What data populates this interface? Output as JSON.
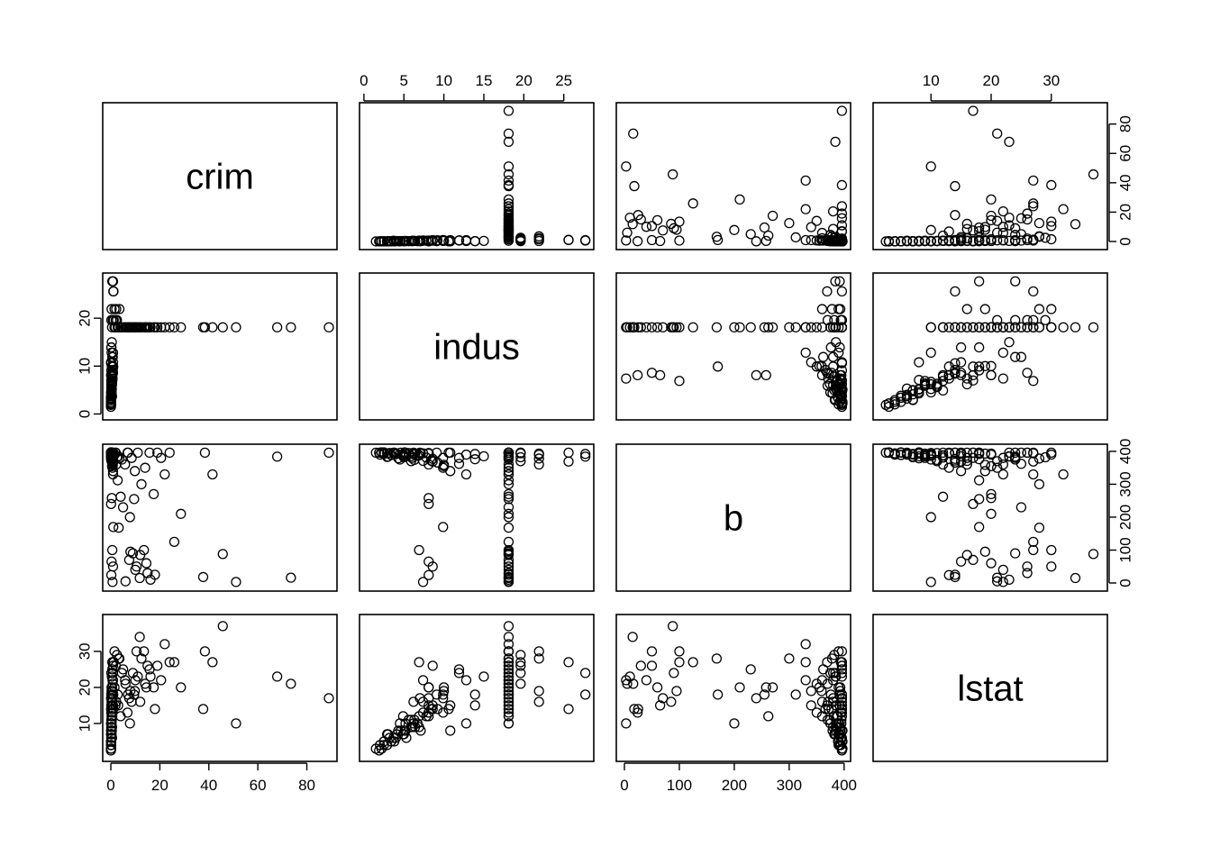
{
  "chart_data": {
    "type": "scatter",
    "kind": "scatterplot-matrix",
    "title": "",
    "variables": [
      "crim",
      "indus",
      "b",
      "lstat"
    ],
    "ranges": {
      "crim": [
        0,
        89
      ],
      "indus": [
        0.46,
        27.74
      ],
      "b": [
        0,
        397
      ],
      "lstat": [
        1.73,
        37.97
      ]
    },
    "axes": {
      "bottom": {
        "crim": [
          0,
          20,
          40,
          60,
          80
        ],
        "b": [
          0,
          100,
          200,
          300,
          400
        ]
      },
      "top": {
        "indus": [
          0,
          5,
          10,
          15,
          20,
          25
        ],
        "lstat": [
          10,
          20,
          30
        ]
      },
      "left": {
        "indus": [
          0,
          10,
          20
        ],
        "lstat": [
          10,
          20,
          30
        ]
      },
      "right": {
        "crim": [
          0,
          20,
          40,
          60,
          80
        ],
        "b": [
          0,
          100,
          200,
          300,
          400
        ]
      }
    },
    "observations": [
      [
        0.1,
        2.5,
        397,
        5
      ],
      [
        0.2,
        3.2,
        395,
        6
      ],
      [
        0.3,
        4.1,
        392,
        7
      ],
      [
        0.1,
        2.0,
        390,
        4
      ],
      [
        0.05,
        1.5,
        396,
        3
      ],
      [
        0.4,
        5.2,
        385,
        8
      ],
      [
        0.2,
        6.0,
        380,
        9
      ],
      [
        0.5,
        3.7,
        396,
        6
      ],
      [
        0.1,
        4.5,
        375,
        10
      ],
      [
        0.3,
        5.9,
        370,
        11
      ],
      [
        0.2,
        7.1,
        393,
        8
      ],
      [
        0.6,
        8.1,
        360,
        12
      ],
      [
        0.4,
        6.9,
        388,
        9
      ],
      [
        0.1,
        2.9,
        394,
        4
      ],
      [
        0.08,
        3.4,
        389,
        5
      ],
      [
        0.2,
        5.0,
        382,
        7
      ],
      [
        0.7,
        9.9,
        350,
        13
      ],
      [
        0.3,
        6.2,
        391,
        10
      ],
      [
        0.1,
        2.2,
        397,
        3
      ],
      [
        0.5,
        8.6,
        377,
        14
      ],
      [
        0.04,
        1.9,
        396,
        2.5
      ],
      [
        0.3,
        4.9,
        387,
        12
      ],
      [
        0.6,
        7.4,
        371,
        16
      ],
      [
        0.2,
        5.6,
        395,
        11
      ],
      [
        0.1,
        3.0,
        384,
        7
      ],
      [
        0.9,
        10.8,
        340,
        15
      ],
      [
        0.4,
        6.4,
        393,
        9
      ],
      [
        0.2,
        4.3,
        379,
        8
      ],
      [
        0.1,
        3.8,
        396,
        5
      ],
      [
        0.8,
        9.2,
        366,
        14
      ],
      [
        0.3,
        5.3,
        390,
        6
      ],
      [
        0.2,
        6.7,
        386,
        10
      ],
      [
        0.6,
        8.1,
        395,
        13
      ],
      [
        0.1,
        2.5,
        392,
        4
      ],
      [
        0.5,
        7.8,
        381,
        12
      ],
      [
        0.3,
        5.1,
        397,
        8
      ],
      [
        0.4,
        6.3,
        374,
        11
      ],
      [
        0.1,
        3.4,
        389,
        5
      ],
      [
        0.2,
        4.0,
        394,
        6
      ],
      [
        0.7,
        8.6,
        369,
        15
      ],
      [
        0.2,
        7.0,
        396,
        17
      ],
      [
        0.1,
        2.9,
        383,
        7
      ],
      [
        0.5,
        6.1,
        392,
        9
      ],
      [
        0.3,
        4.6,
        396,
        8
      ],
      [
        0.8,
        10.0,
        359,
        19
      ],
      [
        0.4,
        6.9,
        388,
        12
      ],
      [
        0.2,
        5.2,
        395,
        10
      ],
      [
        0.6,
        8.4,
        372,
        14
      ],
      [
        0.1,
        2.2,
        396,
        3
      ],
      [
        0.3,
        5.9,
        385,
        9
      ],
      [
        0.2,
        4.9,
        390,
        7
      ],
      [
        0.5,
        7.4,
        394,
        13
      ],
      [
        0.9,
        12.8,
        330,
        22
      ],
      [
        0.4,
        9.9,
        380,
        17
      ],
      [
        0.3,
        8.1,
        393,
        20
      ],
      [
        0.2,
        13.9,
        376,
        18
      ],
      [
        0.1,
        10.6,
        396,
        14
      ],
      [
        0.6,
        11.9,
        362,
        25
      ],
      [
        0.4,
        15.0,
        385,
        23
      ],
      [
        0.3,
        21.9,
        393,
        19
      ],
      [
        0.2,
        19.6,
        396,
        24
      ],
      [
        1.2,
        19.6,
        394,
        27
      ],
      [
        2.5,
        19.6,
        382,
        29
      ],
      [
        1.5,
        21.9,
        390,
        30
      ],
      [
        0.8,
        19.6,
        370,
        21
      ],
      [
        2.0,
        19.6,
        396,
        26
      ],
      [
        3.5,
        21.9,
        378,
        28
      ],
      [
        1.0,
        25.6,
        396,
        14
      ],
      [
        0.6,
        27.7,
        392,
        18
      ],
      [
        0.9,
        27.7,
        384,
        24
      ],
      [
        1.1,
        25.6,
        369,
        27
      ],
      [
        2.2,
        21.9,
        360,
        16
      ],
      [
        0.5,
        18.1,
        396,
        12
      ],
      [
        1.5,
        18.1,
        390,
        20
      ],
      [
        3.0,
        18.1,
        385,
        15
      ],
      [
        4.5,
        18.1,
        375,
        24
      ],
      [
        5.8,
        18.1,
        360,
        22
      ],
      [
        7.0,
        18.1,
        396,
        18
      ],
      [
        8.5,
        18.1,
        380,
        16
      ],
      [
        9.8,
        18.1,
        340,
        19
      ],
      [
        11.0,
        18.1,
        396,
        23
      ],
      [
        12.5,
        18.1,
        300,
        28
      ],
      [
        14.0,
        18.1,
        350,
        21
      ],
      [
        15.8,
        18.1,
        396,
        25
      ],
      [
        17.5,
        18.1,
        270,
        20
      ],
      [
        19.0,
        18.1,
        396,
        26
      ],
      [
        20.5,
        18.1,
        380,
        22
      ],
      [
        22.0,
        18.1,
        330,
        32
      ],
      [
        24.0,
        18.1,
        396,
        27
      ],
      [
        25.9,
        18.1,
        125,
        27
      ],
      [
        28.6,
        18.1,
        210,
        20
      ],
      [
        9.0,
        18.1,
        90,
        24
      ],
      [
        10.5,
        18.1,
        50,
        30
      ],
      [
        11.8,
        18.1,
        15,
        34
      ],
      [
        13.5,
        18.1,
        100,
        30
      ],
      [
        15.0,
        18.1,
        30,
        26
      ],
      [
        7.5,
        18.1,
        70,
        17
      ],
      [
        6.0,
        18.1,
        5,
        21
      ],
      [
        8.0,
        18.1,
        95,
        19
      ],
      [
        10.0,
        18.1,
        40,
        22
      ],
      [
        12.0,
        18.1,
        85,
        16
      ],
      [
        14.5,
        18.1,
        60,
        20
      ],
      [
        16.2,
        18.1,
        10,
        23
      ],
      [
        18.0,
        18.1,
        25,
        14
      ],
      [
        9.5,
        18.1,
        255,
        18
      ],
      [
        37.7,
        18.1,
        18,
        14
      ],
      [
        41.5,
        18.1,
        330,
        27
      ],
      [
        38.4,
        18.1,
        396,
        30
      ],
      [
        45.7,
        18.1,
        88,
        37
      ],
      [
        51.1,
        18.1,
        3,
        10
      ],
      [
        67.9,
        18.1,
        384,
        23
      ],
      [
        73.5,
        18.1,
        16,
        21
      ],
      [
        89.0,
        18.1,
        396,
        17
      ],
      [
        4.0,
        18.1,
        262,
        12
      ],
      [
        5.0,
        18.1,
        230,
        25
      ],
      [
        3.2,
        18.1,
        168,
        28
      ],
      [
        2.8,
        18.1,
        312,
        18
      ],
      [
        1.9,
        18.1,
        396,
        15
      ],
      [
        6.8,
        18.1,
        396,
        13
      ],
      [
        7.8,
        18.1,
        200,
        10
      ],
      [
        0.2,
        8.1,
        24,
        13
      ],
      [
        0.3,
        8.1,
        65,
        15
      ],
      [
        0.1,
        8.1,
        240,
        17
      ],
      [
        0.4,
        8.1,
        258,
        20
      ],
      [
        0.2,
        9.1,
        396,
        18
      ],
      [
        0.3,
        6.2,
        396,
        16
      ],
      [
        0.5,
        10.0,
        355,
        20
      ],
      [
        0.2,
        13.9,
        392,
        15
      ],
      [
        0.3,
        12.8,
        390,
        10
      ],
      [
        0.1,
        10.8,
        396,
        8
      ],
      [
        0.7,
        7.4,
        3,
        22
      ],
      [
        0.9,
        8.6,
        50,
        26
      ],
      [
        0.6,
        6.9,
        100,
        27
      ],
      [
        1.0,
        9.9,
        170,
        18
      ],
      [
        0.8,
        11.9,
        380,
        24
      ]
    ]
  }
}
